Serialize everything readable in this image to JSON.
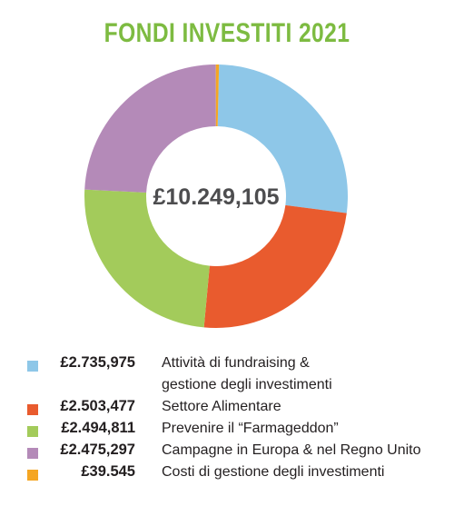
{
  "chart_data": {
    "type": "pie",
    "title": "FONDI INVESTITI 2021",
    "total_label": "£10.249,105",
    "categories": [
      "Attività di fundraising & gestione degli investimenti",
      "Settore Alimentare",
      "Prevenire il “Farmageddon”",
      "Campagne in Europa & nel Regno Unito",
      "Costi di gestione degli investimenti"
    ],
    "values": [
      2735975,
      2503477,
      2494811,
      2475297,
      39545
    ],
    "colors": [
      "#8ec7e8",
      "#e95b2e",
      "#a3cb5b",
      "#b48ab8",
      "#f5a623"
    ],
    "legend": [
      {
        "amount": "£2.735,975",
        "label_lines": [
          "Attività di fundraising &",
          "gestione degli investimenti"
        ],
        "color": "#8ec7e8"
      },
      {
        "amount": "£2.503,477",
        "label_lines": [
          "Settore Alimentare"
        ],
        "color": "#e95b2e"
      },
      {
        "amount": "£2.494,811",
        "label_lines": [
          "Prevenire il “Farmageddon”"
        ],
        "color": "#a3cb5b"
      },
      {
        "amount": "£2.475,297",
        "label_lines": [
          "Campagne in Europa & nel Regno Unito"
        ],
        "color": "#b48ab8"
      },
      {
        "amount": "£39.545",
        "label_lines": [
          "Costi di gestione degli investimenti"
        ],
        "color": "#f5a623"
      }
    ],
    "legend_position": "bottom"
  }
}
